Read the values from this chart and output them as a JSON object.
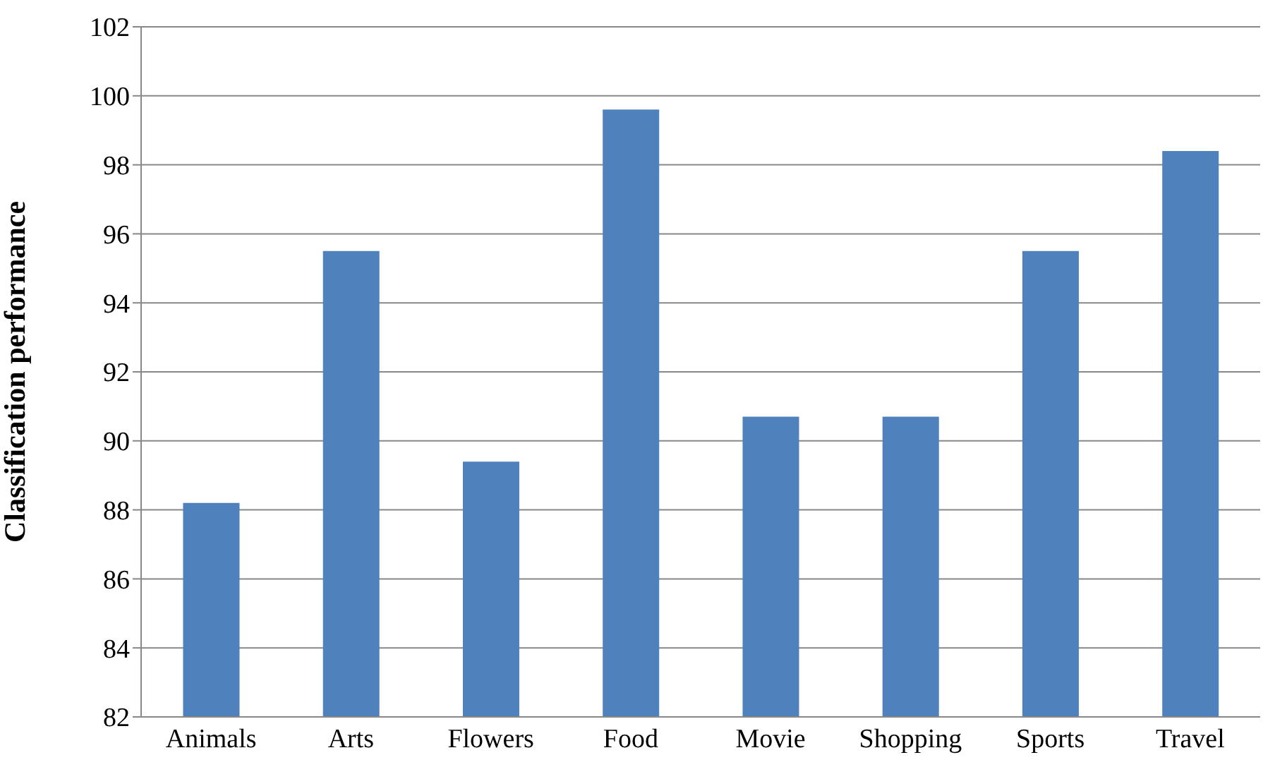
{
  "chart_data": {
    "type": "bar",
    "ylabel": "Classification performance",
    "categories": [
      "Animals",
      "Arts",
      "Flowers",
      "Food",
      "Movie",
      "Shopping",
      "Sports",
      "Travel"
    ],
    "values": [
      88.2,
      95.5,
      89.4,
      99.6,
      90.7,
      90.7,
      95.5,
      98.4
    ],
    "color": "#4f81bd",
    "ylim": [
      82,
      102
    ],
    "yticks": [
      82,
      84,
      86,
      88,
      90,
      92,
      94,
      96,
      98,
      100,
      102
    ],
    "grid": "y"
  }
}
